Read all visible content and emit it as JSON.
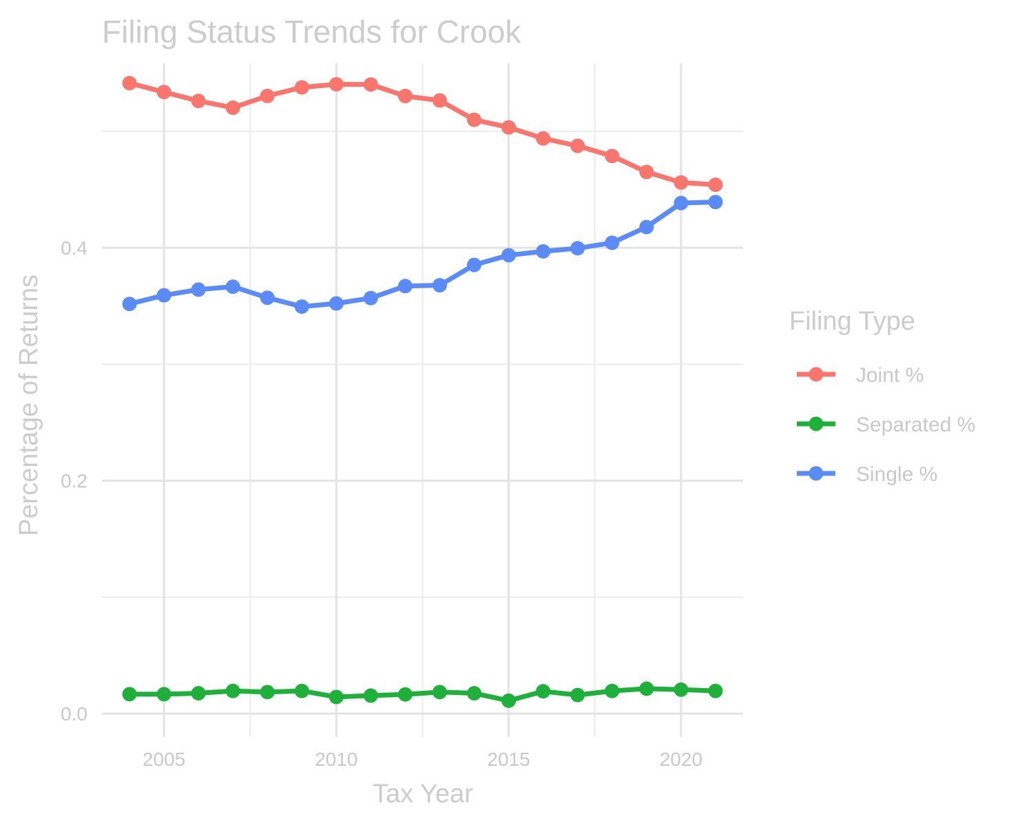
{
  "chart_data": {
    "type": "line",
    "title": "Filing Status Trends for Crook",
    "xlabel": "Tax Year",
    "ylabel": "Percentage of Returns",
    "x": [
      2004,
      2005,
      2006,
      2007,
      2008,
      2009,
      2010,
      2011,
      2012,
      2013,
      2014,
      2015,
      2016,
      2017,
      2018,
      2019,
      2020,
      2021
    ],
    "x_ticks": [
      "2005",
      "2010",
      "2015",
      "2020"
    ],
    "y_ticks": [
      "0.0",
      "0.2",
      "0.4"
    ],
    "xlim": [
      2003.2,
      2021.8
    ],
    "ylim": [
      -0.02,
      0.5584
    ],
    "grid": true,
    "legend": {
      "title": "Filing Type",
      "position": "right"
    },
    "series": [
      {
        "name": "Joint %",
        "color": "#F8766D",
        "values": [
          0.5414,
          0.5337,
          0.5261,
          0.5203,
          0.5304,
          0.5377,
          0.5404,
          0.5402,
          0.5303,
          0.5265,
          0.5099,
          0.5034,
          0.4939,
          0.4875,
          0.4788,
          0.4651,
          0.4561,
          0.4541
        ]
      },
      {
        "name": "Separated %",
        "color": "#1EB03A",
        "values": [
          0.0167,
          0.0167,
          0.0175,
          0.0195,
          0.0185,
          0.0195,
          0.0143,
          0.0155,
          0.0165,
          0.0185,
          0.0175,
          0.0111,
          0.0192,
          0.016,
          0.0195,
          0.0214,
          0.0206,
          0.0195
        ]
      },
      {
        "name": "Single %",
        "color": "#5A8BF7",
        "values": [
          0.3518,
          0.3592,
          0.3641,
          0.3666,
          0.3571,
          0.3495,
          0.3522,
          0.3568,
          0.3671,
          0.3678,
          0.3853,
          0.3936,
          0.3969,
          0.3996,
          0.4043,
          0.4178,
          0.4384,
          0.4393
        ]
      }
    ]
  }
}
